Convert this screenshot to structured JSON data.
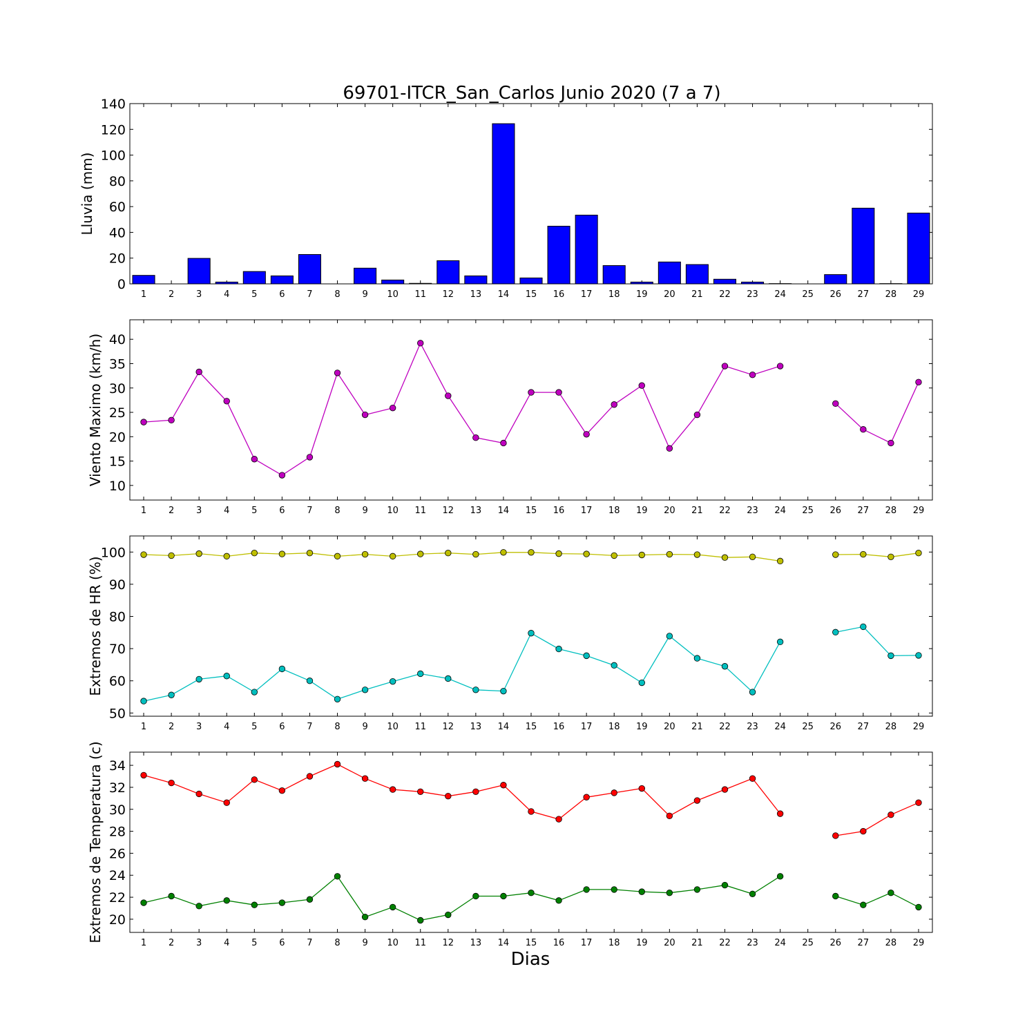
{
  "figure": {
    "title": "69701-ITCR_San_Carlos Junio 2020  (7 a 7)",
    "xlabel": "Dias"
  },
  "chart_data": [
    {
      "type": "bar",
      "ylabel": "Lluvia (mm)",
      "ylim": [
        0,
        140
      ],
      "yticks": [
        0,
        20,
        40,
        60,
        80,
        100,
        120,
        140
      ],
      "x": [
        1,
        2,
        3,
        4,
        5,
        6,
        7,
        8,
        9,
        10,
        11,
        12,
        13,
        14,
        15,
        16,
        17,
        18,
        19,
        20,
        21,
        22,
        23,
        24,
        25,
        26,
        27,
        28,
        29
      ],
      "series": [
        {
          "color": "#0000ff",
          "values": [
            6.6,
            0,
            19.8,
            1.4,
            9.6,
            6.2,
            22.8,
            0,
            12.2,
            3.0,
            0.4,
            18.0,
            6.2,
            124.4,
            4.6,
            44.8,
            53.4,
            14.2,
            1.4,
            17.0,
            15.0,
            3.6,
            1.4,
            0.2,
            0,
            7.2,
            58.8,
            0.2,
            55.0
          ]
        }
      ],
      "grid": false
    },
    {
      "type": "line",
      "ylabel": "Viento Maximo (km/h)",
      "ylim": [
        7,
        44
      ],
      "yticks": [
        10,
        15,
        20,
        25,
        30,
        35,
        40
      ],
      "x": [
        1,
        2,
        3,
        4,
        5,
        6,
        7,
        8,
        9,
        10,
        11,
        12,
        13,
        14,
        15,
        16,
        17,
        18,
        19,
        20,
        21,
        22,
        23,
        24,
        25,
        26,
        27,
        28,
        29
      ],
      "series": [
        {
          "color": "#bf00bf",
          "values": [
            23.0,
            23.4,
            33.3,
            27.3,
            15.4,
            12.1,
            15.8,
            33.1,
            24.5,
            25.9,
            39.2,
            28.4,
            19.8,
            18.7,
            29.1,
            29.1,
            20.5,
            26.6,
            30.5,
            17.6,
            24.5,
            34.5,
            32.7,
            34.5,
            null,
            26.8,
            21.5,
            18.7,
            31.2
          ]
        }
      ],
      "grid": false
    },
    {
      "type": "line",
      "ylabel": "Extremos de HR (%)",
      "ylim": [
        49,
        105
      ],
      "yticks": [
        50,
        60,
        70,
        80,
        90,
        100
      ],
      "x": [
        1,
        2,
        3,
        4,
        5,
        6,
        7,
        8,
        9,
        10,
        11,
        12,
        13,
        14,
        15,
        16,
        17,
        18,
        19,
        20,
        21,
        22,
        23,
        24,
        25,
        26,
        27,
        28,
        29
      ],
      "series": [
        {
          "color": "#bfbf00",
          "values": [
            99.2,
            98.9,
            99.5,
            98.7,
            99.7,
            99.4,
            99.7,
            98.7,
            99.3,
            98.7,
            99.4,
            99.7,
            99.3,
            99.9,
            99.9,
            99.5,
            99.4,
            98.9,
            99.1,
            99.3,
            99.2,
            98.3,
            98.5,
            97.2,
            null,
            99.2,
            99.3,
            98.5,
            99.7
          ]
        },
        {
          "color": "#00bfbf",
          "values": [
            53.7,
            55.6,
            60.5,
            61.5,
            56.5,
            63.7,
            60.0,
            54.3,
            57.2,
            59.8,
            62.2,
            60.7,
            57.2,
            56.8,
            74.8,
            69.9,
            67.8,
            64.8,
            59.4,
            73.9,
            67.0,
            64.5,
            56.5,
            72.1,
            null,
            75.1,
            76.8,
            67.8,
            67.9
          ]
        }
      ],
      "grid": false
    },
    {
      "type": "line",
      "ylabel": "Extremos de Temperatura (c)",
      "ylim": [
        18.8,
        35.2
      ],
      "yticks": [
        20,
        22,
        24,
        26,
        28,
        30,
        32,
        34
      ],
      "x": [
        1,
        2,
        3,
        4,
        5,
        6,
        7,
        8,
        9,
        10,
        11,
        12,
        13,
        14,
        15,
        16,
        17,
        18,
        19,
        20,
        21,
        22,
        23,
        24,
        25,
        26,
        27,
        28,
        29
      ],
      "series": [
        {
          "color": "#ff0000",
          "values": [
            33.1,
            32.4,
            31.4,
            30.6,
            32.7,
            31.7,
            33.0,
            34.1,
            32.8,
            31.8,
            31.6,
            31.2,
            31.6,
            32.2,
            29.8,
            29.1,
            31.1,
            31.5,
            31.9,
            29.4,
            30.8,
            31.8,
            32.8,
            29.6,
            null,
            27.6,
            28.0,
            29.5,
            30.6
          ]
        },
        {
          "color": "#008000",
          "values": [
            21.5,
            22.1,
            21.2,
            21.7,
            21.3,
            21.5,
            21.8,
            23.9,
            20.2,
            21.1,
            19.9,
            20.4,
            22.1,
            22.1,
            22.4,
            21.7,
            22.7,
            22.7,
            22.5,
            22.4,
            22.7,
            23.1,
            22.3,
            23.9,
            null,
            22.1,
            21.3,
            22.4,
            21.1
          ]
        }
      ],
      "grid": false
    }
  ]
}
